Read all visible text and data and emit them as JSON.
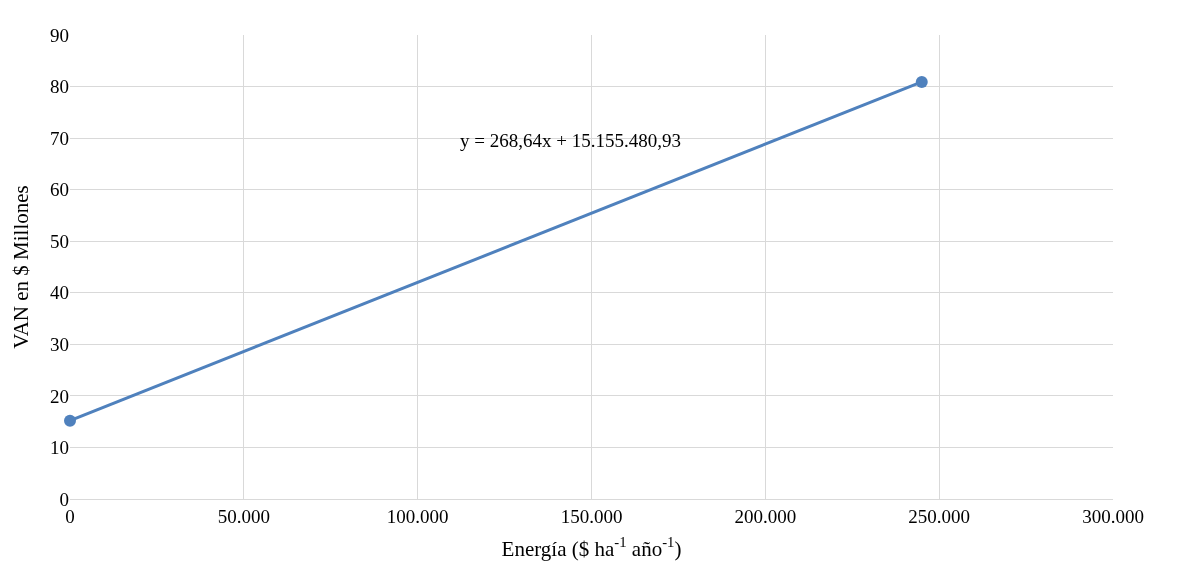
{
  "chart_data": {
    "type": "line",
    "xlabel": "Energía ($ ha$^{-1}$ año$^{-1}$)",
    "ylabel": "VAN en $ Millones",
    "x": [
      0,
      245000
    ],
    "series": [
      {
        "color": "#4f81bd",
        "values": [
          15.2,
          80.9
        ]
      }
    ],
    "marker": "circle",
    "line_style": "solid",
    "xlim": [
      0,
      300000
    ],
    "xticks": [
      0,
      {
        "value": 50000,
        "label": "50.000"
      },
      {
        "value": 100000,
        "label": "100.000"
      },
      {
        "value": 150000,
        "label": "150.000"
      },
      {
        "value": 200000,
        "label": "200.000"
      },
      {
        "value": 250000,
        "label": "250.000"
      },
      {
        "value": 300000,
        "label": "300.000"
      }
    ],
    "ylim": [
      0,
      90
    ],
    "yticks": [
      0,
      10,
      20,
      30,
      40,
      50,
      60,
      70,
      80,
      90
    ],
    "grid": true,
    "annotations": [
      "y = 268,64x + 15.155.480,93"
    ]
  }
}
